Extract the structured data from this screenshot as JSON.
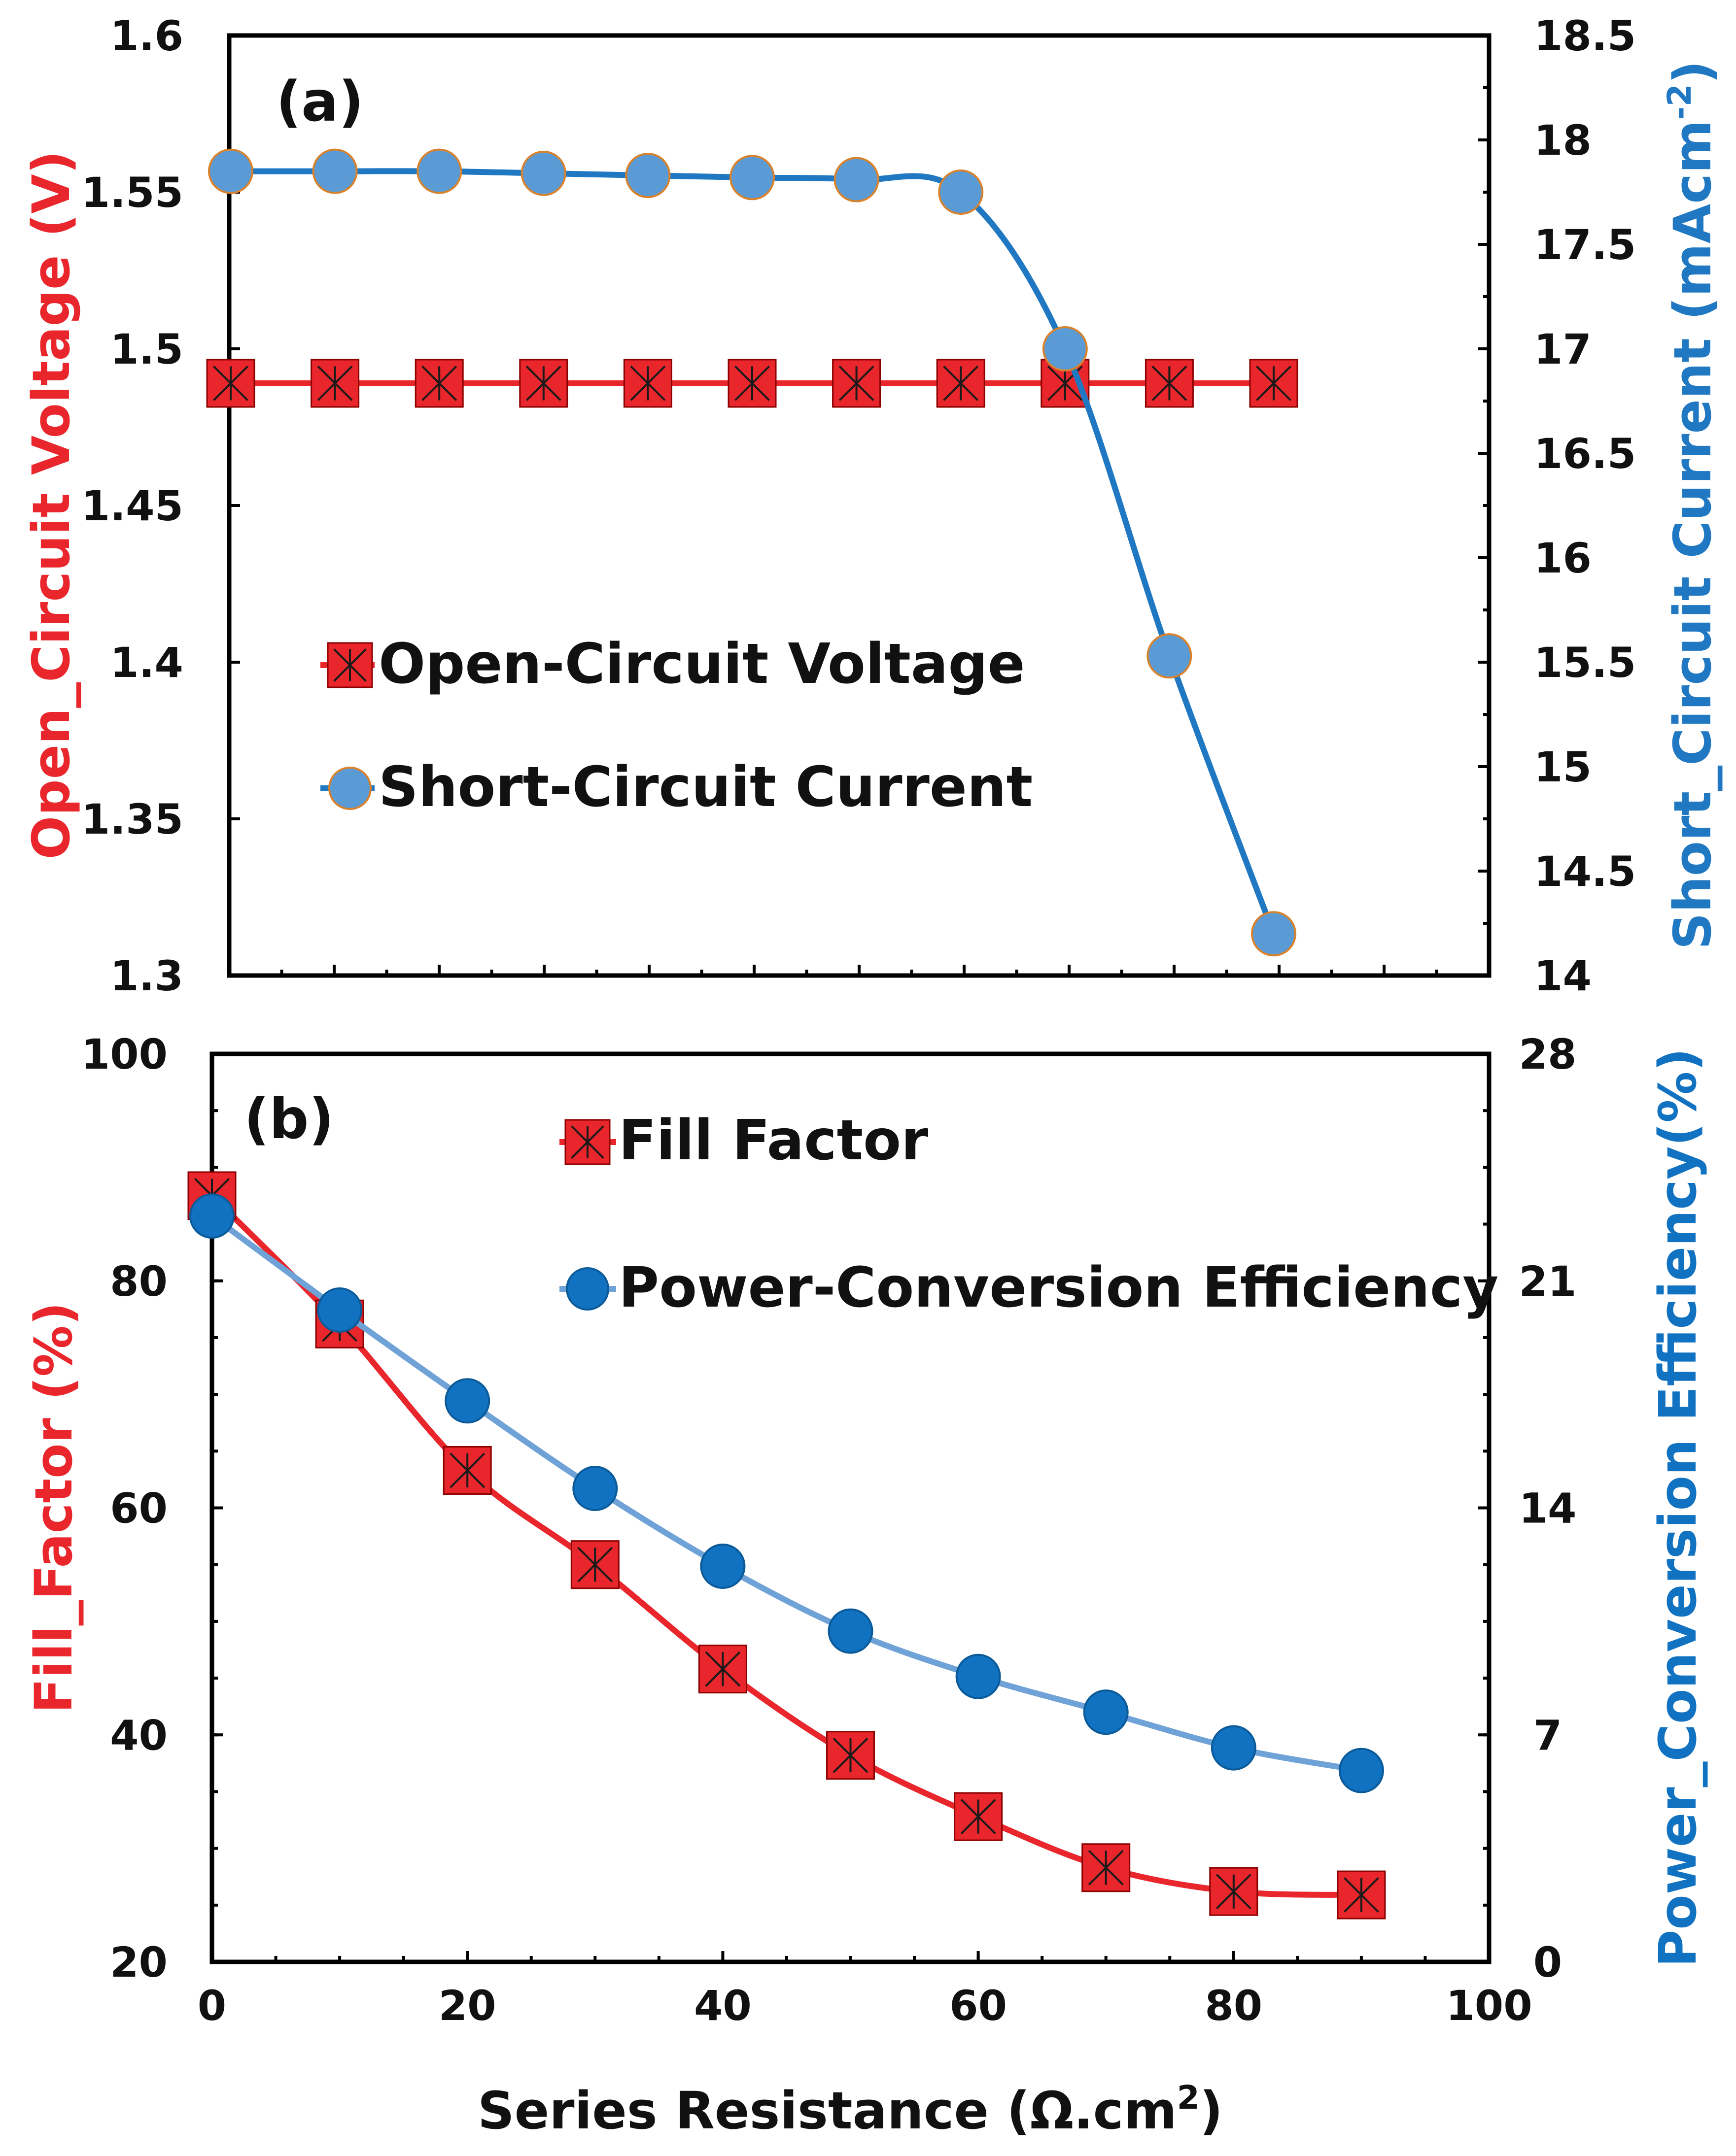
{
  "colors": {
    "red": "#e8262c",
    "red_dark": "#d31b22",
    "blue_a_line": "#1f78c1",
    "blue_a_marker": "#5b9bd5",
    "blue_b_line": "#6fa2d6",
    "blue_b_marker": "#1072c0",
    "axis": "#000000"
  },
  "chart_data": [
    {
      "panel": "(a)",
      "type": "line",
      "x": [
        0,
        10,
        20,
        30,
        40,
        50,
        60,
        70,
        80,
        90,
        100
      ],
      "left_axis": {
        "label": "Open_Circuit Voltage (V)",
        "ylim": [
          1.3,
          1.6
        ],
        "ticks": [
          "1.3",
          "1.35",
          "1.4",
          "1.45",
          "1.5",
          "1.55",
          "1.6"
        ]
      },
      "right_axis": {
        "label_main": "Short_Circuit Current (mAcm",
        "label_sup": "-2",
        "label_end": ")",
        "ylim": [
          14,
          18.5
        ],
        "ticks": [
          "14",
          "14.5",
          "15",
          "15.5",
          "16",
          "16.5",
          "17",
          "17.5",
          "18",
          "18.5"
        ]
      },
      "series": [
        {
          "name": "Open-Circuit Voltage",
          "axis": "left",
          "color": "#e8262c",
          "marker": "square-x",
          "values": [
            1.489,
            1.489,
            1.489,
            1.489,
            1.489,
            1.489,
            1.489,
            1.489,
            1.489,
            1.489,
            1.489
          ]
        },
        {
          "name": "Short-Circuit Current",
          "axis": "right",
          "color": "#1f78c1",
          "marker": "circle",
          "values": [
            17.85,
            17.85,
            17.85,
            17.84,
            17.83,
            17.82,
            17.81,
            17.75,
            17.0,
            15.53,
            14.2
          ]
        }
      ],
      "legend": [
        "Open-Circuit Voltage",
        "Short-Circuit Current"
      ]
    },
    {
      "panel": "(b)",
      "type": "line",
      "x": [
        0,
        10,
        20,
        30,
        40,
        50,
        60,
        70,
        80,
        90
      ],
      "xlabel_main": "Series Resistance (Ω.cm",
      "xlabel_sup": "2",
      "xlabel_end": ")",
      "xlim": [
        0,
        100
      ],
      "xticks": [
        "0",
        "20",
        "40",
        "60",
        "80",
        "100"
      ],
      "left_axis": {
        "label": "Fill_Factor (%)",
        "ylim": [
          20,
          100
        ],
        "ticks": [
          "20",
          "40",
          "60",
          "80",
          "100"
        ]
      },
      "right_axis": {
        "label": "Power_Conversion Efficiency(%)",
        "ylim": [
          0,
          28
        ],
        "ticks": [
          "0",
          "7",
          "14",
          "21",
          "28"
        ]
      },
      "series": [
        {
          "name": "Fill Factor",
          "axis": "left",
          "color": "#e8262c",
          "marker": "square-x",
          "values": [
            87.5,
            76.2,
            63.3,
            55.0,
            45.8,
            38.2,
            32.8,
            28.3,
            26.2,
            25.9
          ]
        },
        {
          "name": "Power-Conversion Efficiency",
          "axis": "right",
          "color": "#1072c0",
          "marker": "circle",
          "values": [
            23.0,
            20.1,
            17.3,
            14.6,
            12.2,
            10.2,
            8.8,
            7.7,
            6.6,
            5.9
          ]
        }
      ],
      "legend": [
        "Fill Factor",
        "Power-Conversion Efficiency"
      ]
    }
  ]
}
